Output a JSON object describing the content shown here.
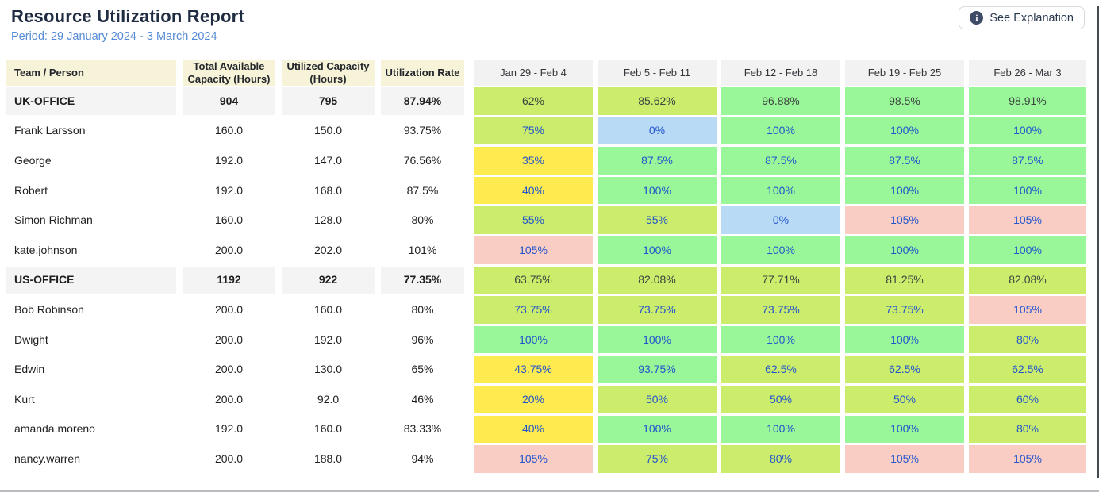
{
  "header": {
    "title": "Resource Utilization Report",
    "period": "Period: 29 January 2024 - 3 March 2024",
    "explanation_button": "See Explanation",
    "info_glyph": "i"
  },
  "table": {
    "columns": [
      "Team / Person",
      "Total Available Capacity (Hours)",
      "Utilized Capacity (Hours)",
      "Utilization Rate"
    ],
    "week_columns": [
      "Jan 29 - Feb 4",
      "Feb 5 - Feb 11",
      "Feb 12 - Feb 18",
      "Feb 19 - Feb 25",
      "Feb 26 - Mar 3"
    ],
    "rows": [
      {
        "type": "team",
        "name": "UK-OFFICE",
        "available": "904",
        "utilized": "795",
        "rate": "87.94%",
        "weeks": [
          {
            "value": "62%",
            "color": "yellow_green"
          },
          {
            "value": "85.62%",
            "color": "yellow_green"
          },
          {
            "value": "96.88%",
            "color": "green"
          },
          {
            "value": "98.5%",
            "color": "green"
          },
          {
            "value": "98.91%",
            "color": "green"
          }
        ]
      },
      {
        "type": "person",
        "name": "Frank Larsson",
        "available": "160.0",
        "utilized": "150.0",
        "rate": "93.75%",
        "weeks": [
          {
            "value": "75%",
            "color": "yellow_green"
          },
          {
            "value": "0%",
            "color": "blue"
          },
          {
            "value": "100%",
            "color": "green"
          },
          {
            "value": "100%",
            "color": "green"
          },
          {
            "value": "100%",
            "color": "green"
          }
        ]
      },
      {
        "type": "person",
        "name": "George",
        "available": "192.0",
        "utilized": "147.0",
        "rate": "76.56%",
        "weeks": [
          {
            "value": "35%",
            "color": "yellow"
          },
          {
            "value": "87.5%",
            "color": "green"
          },
          {
            "value": "87.5%",
            "color": "green"
          },
          {
            "value": "87.5%",
            "color": "green"
          },
          {
            "value": "87.5%",
            "color": "green"
          }
        ]
      },
      {
        "type": "person",
        "name": "Robert",
        "available": "192.0",
        "utilized": "168.0",
        "rate": "87.5%",
        "weeks": [
          {
            "value": "40%",
            "color": "yellow"
          },
          {
            "value": "100%",
            "color": "green"
          },
          {
            "value": "100%",
            "color": "green"
          },
          {
            "value": "100%",
            "color": "green"
          },
          {
            "value": "100%",
            "color": "green"
          }
        ]
      },
      {
        "type": "person",
        "name": "Simon Richman",
        "available": "160.0",
        "utilized": "128.0",
        "rate": "80%",
        "weeks": [
          {
            "value": "55%",
            "color": "yellow_green"
          },
          {
            "value": "55%",
            "color": "yellow_green"
          },
          {
            "value": "0%",
            "color": "blue"
          },
          {
            "value": "105%",
            "color": "pink"
          },
          {
            "value": "105%",
            "color": "pink"
          }
        ]
      },
      {
        "type": "person",
        "name": "kate.johnson",
        "available": "200.0",
        "utilized": "202.0",
        "rate": "101%",
        "weeks": [
          {
            "value": "105%",
            "color": "pink"
          },
          {
            "value": "100%",
            "color": "green"
          },
          {
            "value": "100%",
            "color": "green"
          },
          {
            "value": "100%",
            "color": "green"
          },
          {
            "value": "100%",
            "color": "green"
          }
        ]
      },
      {
        "type": "team",
        "name": "US-OFFICE",
        "available": "1192",
        "utilized": "922",
        "rate": "77.35%",
        "weeks": [
          {
            "value": "63.75%",
            "color": "yellow_green"
          },
          {
            "value": "82.08%",
            "color": "yellow_green"
          },
          {
            "value": "77.71%",
            "color": "yellow_green"
          },
          {
            "value": "81.25%",
            "color": "yellow_green"
          },
          {
            "value": "82.08%",
            "color": "yellow_green"
          }
        ]
      },
      {
        "type": "person",
        "name": "Bob Robinson",
        "available": "200.0",
        "utilized": "160.0",
        "rate": "80%",
        "weeks": [
          {
            "value": "73.75%",
            "color": "yellow_green"
          },
          {
            "value": "73.75%",
            "color": "yellow_green"
          },
          {
            "value": "73.75%",
            "color": "yellow_green"
          },
          {
            "value": "73.75%",
            "color": "yellow_green"
          },
          {
            "value": "105%",
            "color": "pink"
          }
        ]
      },
      {
        "type": "person",
        "name": "Dwight",
        "available": "200.0",
        "utilized": "192.0",
        "rate": "96%",
        "weeks": [
          {
            "value": "100%",
            "color": "green"
          },
          {
            "value": "100%",
            "color": "green"
          },
          {
            "value": "100%",
            "color": "green"
          },
          {
            "value": "100%",
            "color": "green"
          },
          {
            "value": "80%",
            "color": "yellow_green"
          }
        ]
      },
      {
        "type": "person",
        "name": "Edwin",
        "available": "200.0",
        "utilized": "130.0",
        "rate": "65%",
        "weeks": [
          {
            "value": "43.75%",
            "color": "yellow"
          },
          {
            "value": "93.75%",
            "color": "green"
          },
          {
            "value": "62.5%",
            "color": "yellow_green"
          },
          {
            "value": "62.5%",
            "color": "yellow_green"
          },
          {
            "value": "62.5%",
            "color": "yellow_green"
          }
        ]
      },
      {
        "type": "person",
        "name": "Kurt",
        "available": "200.0",
        "utilized": "92.0",
        "rate": "46%",
        "weeks": [
          {
            "value": "20%",
            "color": "yellow"
          },
          {
            "value": "50%",
            "color": "yellow_green"
          },
          {
            "value": "50%",
            "color": "yellow_green"
          },
          {
            "value": "50%",
            "color": "yellow_green"
          },
          {
            "value": "60%",
            "color": "yellow_green"
          }
        ]
      },
      {
        "type": "person",
        "name": "amanda.moreno",
        "available": "192.0",
        "utilized": "160.0",
        "rate": "83.33%",
        "weeks": [
          {
            "value": "40%",
            "color": "yellow"
          },
          {
            "value": "100%",
            "color": "green"
          },
          {
            "value": "100%",
            "color": "green"
          },
          {
            "value": "100%",
            "color": "green"
          },
          {
            "value": "80%",
            "color": "yellow_green"
          }
        ]
      },
      {
        "type": "person",
        "name": "nancy.warren",
        "available": "200.0",
        "utilized": "188.0",
        "rate": "94%",
        "weeks": [
          {
            "value": "105%",
            "color": "pink"
          },
          {
            "value": "75%",
            "color": "yellow_green"
          },
          {
            "value": "80%",
            "color": "yellow_green"
          },
          {
            "value": "105%",
            "color": "pink"
          },
          {
            "value": "105%",
            "color": "pink"
          }
        ]
      }
    ]
  },
  "colors": {
    "cells": {
      "green": "#99f699",
      "yellow_green": "#ccec6c",
      "yellow": "#fdeb4f",
      "blue": "#b9daf4",
      "pink": "#facdc4"
    },
    "link_blue": "#2255cc",
    "dark_text": "#3d4540",
    "header_beige": "#f6f3d9",
    "header_gray": "#f2f2f2",
    "team_row_gray": "#f4f4f4",
    "period_blue": "#558bd6",
    "title_navy": "#202c42"
  }
}
